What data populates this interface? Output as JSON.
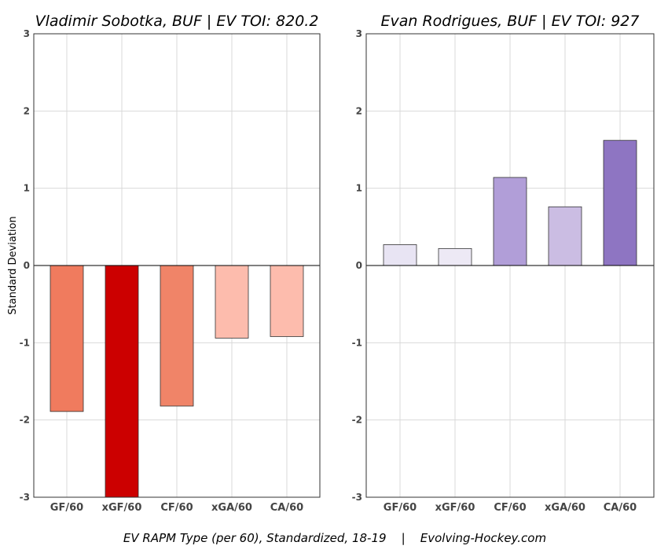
{
  "caption": "EV RAPM Type (per 60), Standardized, 18-19    |    Evolving-Hockey.com",
  "ylabel": "Standard Deviation",
  "chart_data": [
    {
      "type": "bar",
      "title": "Vladimir Sobotka, BUF  |  EV TOI: 820.2",
      "categories": [
        "GF/60",
        "xGF/60",
        "CF/60",
        "xGA/60",
        "CA/60"
      ],
      "values": [
        -1.89,
        -3.0,
        -1.82,
        -0.94,
        -0.92
      ],
      "colors": [
        "#f07b5e",
        "#cc0000",
        "#f08468",
        "#fdbcad",
        "#fdbcad"
      ],
      "ylim": [
        -3,
        3
      ],
      "yticks": [
        -3,
        -2,
        -1,
        0,
        1,
        2,
        3
      ],
      "ylabel": "Standard Deviation",
      "grid": true
    },
    {
      "type": "bar",
      "title": "Evan Rodrigues, BUF  |  EV TOI: 927",
      "categories": [
        "GF/60",
        "xGF/60",
        "CF/60",
        "xGA/60",
        "CA/60"
      ],
      "values": [
        0.27,
        0.22,
        1.14,
        0.76,
        1.62
      ],
      "colors": [
        "#e8e4f3",
        "#ede9f5",
        "#b19ed8",
        "#cbbde3",
        "#8e75c2"
      ],
      "ylim": [
        -3,
        3
      ],
      "yticks": [
        -3,
        -2,
        -1,
        0,
        1,
        2,
        3
      ],
      "grid": true
    }
  ]
}
